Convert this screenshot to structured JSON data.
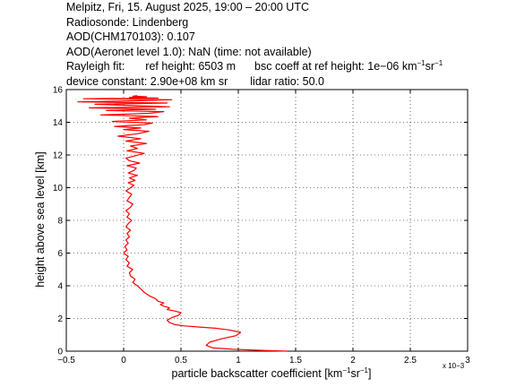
{
  "header": {
    "line1": "Melpitz, Fri, 15. August 2025, 19:00 – 20:00 UTC",
    "line2": "Radiosonde: Lindenberg",
    "line3": "AOD(CHM170103): 0.107",
    "line4": "AOD(Aeronet level 1.0): NaN   (time: not available)",
    "rayleigh_label": "Rayleigh fit:",
    "ref_height": "ref height: 6503 m",
    "bsc_coeff_text": "bsc coeff at ref height: 1e−06 km",
    "bsc_sup1": "−1",
    "bsc_sr": "sr",
    "bsc_sup2": "−1",
    "device_constant": "device constant: 2.90e+08 km sr",
    "lidar_ratio": "lidar ratio: 50.0"
  },
  "axes": {
    "ylabel": "height above sea level [km]",
    "xlabel_main": "particle backscatter coefficient [km",
    "xlabel_sup1": "−1",
    "xlabel_sr": "sr",
    "xlabel_sup2": "−1",
    "xlabel_end": "]",
    "x_exponent": "x 10−3"
  },
  "chart_data": {
    "type": "line",
    "xlim": [
      -0.5,
      3
    ],
    "ylim": [
      0,
      16
    ],
    "x_ticks": [
      -0.5,
      0,
      0.5,
      1,
      1.5,
      2,
      2.5,
      3
    ],
    "x_tick_labels": [
      "−0.5",
      "0",
      "0.5",
      "1",
      "1.5",
      "2",
      "2.5",
      "3"
    ],
    "y_ticks": [
      0,
      2,
      4,
      6,
      8,
      10,
      12,
      14,
      16
    ],
    "y_tick_labels": [
      "0",
      "2",
      "4",
      "6",
      "8",
      "10",
      "12",
      "14",
      "16"
    ],
    "grid": true,
    "line_color": "#ff0000",
    "series": [
      {
        "x": [
          1.43,
          1.2,
          0.95,
          0.78,
          0.72,
          0.75,
          0.85,
          0.98,
          1.02,
          0.92,
          0.8,
          0.65,
          0.52,
          0.45,
          0.4,
          0.38,
          0.42,
          0.48,
          0.5,
          0.45,
          0.38,
          0.4,
          0.35,
          0.32,
          0.35,
          0.3,
          0.28,
          0.22,
          0.18,
          0.15,
          0.12,
          0.08,
          0.1,
          0.06,
          0.05,
          0.08,
          0.03,
          0.05,
          0.02,
          0.04,
          0.0,
          0.03,
          0.01,
          0.04,
          0.02,
          0.05,
          0.03,
          0.06,
          0.02,
          0.04,
          0.07,
          0.03,
          0.05,
          0.02,
          0.06,
          0.08,
          0.03,
          0.05,
          0.07,
          0.02,
          0.06,
          0.09,
          0.04,
          0.1,
          0.05,
          0.12,
          0.04,
          0.09,
          0.11,
          0.03,
          0.14,
          0.05,
          0.02,
          0.1,
          0.18,
          0.03,
          0.12,
          0.06,
          0.2,
          0.02,
          0.15,
          -0.05,
          0.12,
          0.22,
          0.0,
          0.15,
          -0.08,
          0.18,
          0.25,
          -0.1,
          0.2,
          0.05,
          0.3,
          -0.2,
          0.22,
          0.35,
          -0.15,
          0.28,
          -0.3,
          0.4,
          0.1,
          -0.25,
          0.38,
          -0.4,
          0.15,
          0.42,
          -0.35,
          0.3,
          0.05,
          0.2,
          0.08,
          0.12
        ],
        "y": [
          0.0,
          0.05,
          0.12,
          0.2,
          0.35,
          0.55,
          0.75,
          0.95,
          1.15,
          1.3,
          1.4,
          1.48,
          1.55,
          1.62,
          1.75,
          1.9,
          2.05,
          2.2,
          2.35,
          2.45,
          2.55,
          2.65,
          2.75,
          2.85,
          2.95,
          3.05,
          3.2,
          3.4,
          3.6,
          3.8,
          4.0,
          4.2,
          4.4,
          4.6,
          4.8,
          5.0,
          5.2,
          5.4,
          5.6,
          5.8,
          6.0,
          6.2,
          6.4,
          6.6,
          6.8,
          7.0,
          7.2,
          7.4,
          7.6,
          7.8,
          8.0,
          8.2,
          8.4,
          8.6,
          8.8,
          9.0,
          9.2,
          9.4,
          9.6,
          9.8,
          10.0,
          10.15,
          10.3,
          10.45,
          10.6,
          10.75,
          10.9,
          11.05,
          11.2,
          11.35,
          11.5,
          11.65,
          11.8,
          11.95,
          12.1,
          12.25,
          12.4,
          12.55,
          12.7,
          12.85,
          13.0,
          13.15,
          13.3,
          13.45,
          13.55,
          13.65,
          13.75,
          13.85,
          13.95,
          14.05,
          14.15,
          14.25,
          14.35,
          14.45,
          14.55,
          14.65,
          14.72,
          14.8,
          14.88,
          14.95,
          15.02,
          15.1,
          15.18,
          15.25,
          15.32,
          15.38,
          15.44,
          15.48,
          15.52,
          15.56,
          15.6,
          15.62
        ]
      }
    ]
  }
}
